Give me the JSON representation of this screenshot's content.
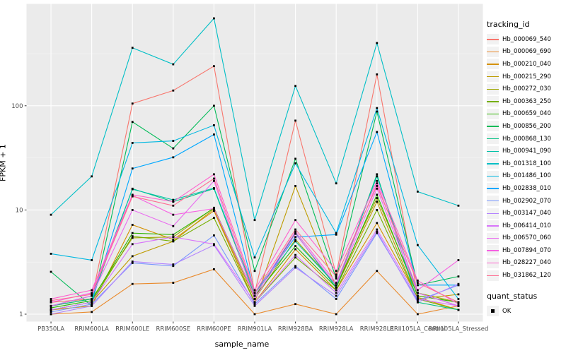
{
  "figure": {
    "x_axis_title": "sample_name",
    "y_axis_title": "FPKM + 1",
    "legend": {
      "tracking_title": "tracking_id",
      "quant_title": "quant_status",
      "quant_item_label": "OK"
    },
    "colors": {
      "panel_bg": "#EBEBEB",
      "grid_major": "#FFFFFF",
      "grid_minor": "#F7F7F7",
      "tick_text": "#4D4D4D",
      "tick_mark": "#333333",
      "point": "#000000",
      "legend_key_bg": "#F2F2F2"
    }
  },
  "chart_data": {
    "type": "line",
    "title": "",
    "xlabel": "sample_name",
    "ylabel": "FPKM + 1",
    "y_scale": "log10",
    "y_tick_values": [
      1,
      10,
      100
    ],
    "y_tick_labels": [
      "1",
      "10",
      "100"
    ],
    "ylim": [
      0.86,
      950
    ],
    "grid": true,
    "legend_position": "right",
    "point_marker": "black-square",
    "quant_status_all": "OK",
    "categories": [
      "PB350LA",
      "RRIM600LA",
      "RRIM600LE",
      "RRIM600SE",
      "RRIM600PE",
      "RRIM901LA",
      "RRIM928BA",
      "RRIM928LA",
      "RRIM928LE",
      "RRII105LA_Control",
      "RRII105LA_Stressed"
    ],
    "series": [
      {
        "name": "Hb_000069_540",
        "color": "#F8766D",
        "values": [
          1.3,
          1.4,
          105,
          140,
          240,
          1.6,
          72,
          2.4,
          200,
          1.5,
          1.3
        ]
      },
      {
        "name": "Hb_000069_690",
        "color": "#E98A2C",
        "values": [
          1.0,
          1.05,
          1.95,
          2.0,
          2.7,
          1.0,
          1.25,
          1.0,
          2.6,
          1.0,
          1.2
        ]
      },
      {
        "name": "Hb_000210_040",
        "color": "#D59100",
        "values": [
          1.1,
          1.2,
          7.2,
          5.2,
          9.8,
          1.3,
          4.2,
          1.7,
          7.5,
          1.45,
          1.1
        ]
      },
      {
        "name": "Hb_000215_290",
        "color": "#BE9C00",
        "values": [
          1.1,
          1.3,
          3.6,
          5.0,
          10.2,
          1.3,
          17,
          1.8,
          12,
          1.4,
          1.55
        ]
      },
      {
        "name": "Hb_000272_030",
        "color": "#9FA600",
        "values": [
          1.2,
          1.4,
          5.4,
          5.5,
          10.5,
          1.4,
          5.2,
          1.9,
          13,
          1.6,
          1.3
        ]
      },
      {
        "name": "Hb_000363_250",
        "color": "#75AF00",
        "values": [
          1.1,
          1.3,
          5.6,
          5.0,
          8.4,
          1.3,
          3.5,
          1.7,
          10,
          1.4,
          1.1
        ]
      },
      {
        "name": "Hb_000659_040",
        "color": "#2CB600",
        "values": [
          1.15,
          1.35,
          6.0,
          5.8,
          10.4,
          1.5,
          4.5,
          1.8,
          14,
          1.5,
          1.3
        ]
      },
      {
        "name": "Hb_000856_200",
        "color": "#00BB57",
        "values": [
          2.55,
          1.2,
          70,
          39,
          100,
          2.6,
          31,
          2.2,
          88,
          1.9,
          2.3
        ]
      },
      {
        "name": "Hb_000868_130",
        "color": "#00C082",
        "values": [
          1.2,
          1.4,
          16,
          12,
          16,
          1.5,
          6.0,
          1.8,
          22,
          1.3,
          1.1
        ]
      },
      {
        "name": "Hb_000941_090",
        "color": "#00C1A7",
        "values": [
          1.2,
          1.5,
          15.8,
          12.5,
          16.2,
          1.6,
          5.0,
          1.9,
          21,
          1.6,
          1.2
        ]
      },
      {
        "name": "Hb_001318_100",
        "color": "#00BFC6",
        "values": [
          9.0,
          21,
          360,
          250,
          690,
          8.0,
          155,
          18,
          400,
          15,
          11
        ]
      },
      {
        "name": "Hb_001486_100",
        "color": "#00B8E1",
        "values": [
          3.8,
          3.3,
          44,
          46,
          65,
          3.5,
          28,
          6.0,
          95,
          4.6,
          1.4
        ]
      },
      {
        "name": "Hb_002838_010",
        "color": "#00A8FF",
        "values": [
          1.1,
          1.3,
          25,
          32,
          53,
          1.6,
          5.5,
          5.8,
          56,
          1.9,
          1.9
        ]
      },
      {
        "name": "Hb_002902_070",
        "color": "#7997FF",
        "values": [
          1.05,
          1.25,
          3.1,
          2.9,
          5.7,
          1.25,
          2.9,
          1.4,
          6.0,
          1.35,
          1.9
        ]
      },
      {
        "name": "Hb_003147_040",
        "color": "#B383FF",
        "values": [
          1.0,
          1.2,
          3.2,
          3.0,
          4.6,
          1.2,
          2.8,
          1.5,
          6.2,
          1.3,
          1.95
        ]
      },
      {
        "name": "Hb_006414_010",
        "color": "#D874FB",
        "values": [
          1.1,
          1.3,
          4.7,
          5.5,
          4.7,
          1.3,
          3.7,
          1.6,
          6.5,
          1.4,
          1.2
        ]
      },
      {
        "name": "Hb_006570_060",
        "color": "#EA69F0",
        "values": [
          1.2,
          1.5,
          10,
          7.0,
          19,
          1.4,
          5.9,
          1.9,
          16,
          1.6,
          1.2
        ]
      },
      {
        "name": "Hb_007894_070",
        "color": "#F661E2",
        "values": [
          1.3,
          1.6,
          13.8,
          9.0,
          10.3,
          1.5,
          6.2,
          2.0,
          18,
          1.7,
          3.3
        ]
      },
      {
        "name": "Hb_028227_040",
        "color": "#FE61CE",
        "values": [
          1.4,
          1.7,
          14,
          12,
          22,
          1.7,
          8.0,
          2.6,
          19,
          2.1,
          1.25
        ]
      },
      {
        "name": "Hb_031862_120",
        "color": "#FF6C91",
        "values": [
          1.35,
          1.55,
          13.5,
          11,
          20,
          1.6,
          6.5,
          2.3,
          17,
          2.0,
          1.3
        ]
      }
    ]
  }
}
